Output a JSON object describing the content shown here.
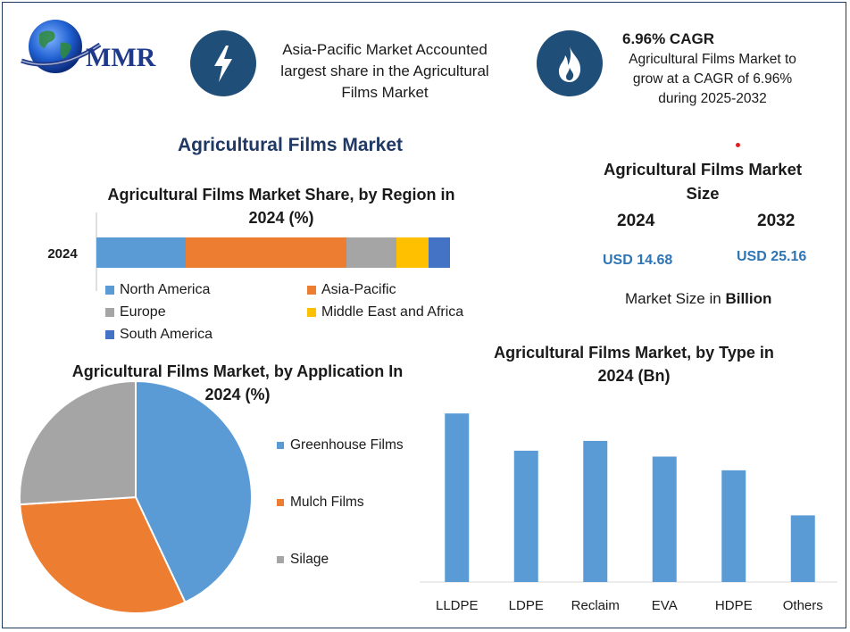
{
  "brand": {
    "logo_text": "MMR"
  },
  "header": {
    "highlight_text_lines": [
      "Asia-Pacific Market Accounted",
      "largest share in the Agricultural",
      "Films Market"
    ],
    "cagr_title": "6.96% CAGR",
    "cagr_text_lines": [
      "Agricultural Films Market to",
      "grow at a CAGR of 6.96%",
      "during 2025-2032"
    ],
    "highlight_icon": "lightning-bolt-icon",
    "cagr_icon": "flame-icon"
  },
  "main_title": "Agricultural Films Market",
  "market_size": {
    "title_lines": [
      "Agricultural Films Market",
      "Size"
    ],
    "years": [
      "2024",
      "2032"
    ],
    "values": [
      "USD 14.68",
      "USD 25.16"
    ],
    "unit_prefix": "Market Size in ",
    "unit_bold": "Billion"
  },
  "colors": {
    "accent_navy": "#1f4e79",
    "north_america": "#5b9bd5",
    "asia_pacific": "#ed7d31",
    "europe": "#a5a5a5",
    "middle_east_africa": "#ffc000",
    "south_america": "#4472c4",
    "usd_value": "#2e75b6"
  },
  "chart_data": [
    {
      "type": "bar",
      "orientation": "horizontal-stacked",
      "title_lines": [
        "Agricultural Films Market Share, by Region in",
        "2024 (%)"
      ],
      "categories": [
        "2024"
      ],
      "series": [
        {
          "name": "North America",
          "values": [
            25
          ]
        },
        {
          "name": "Asia-Pacific",
          "values": [
            45
          ]
        },
        {
          "name": "Europe",
          "values": [
            14
          ]
        },
        {
          "name": "Middle East and Africa",
          "values": [
            9
          ]
        },
        {
          "name": "South America",
          "values": [
            6
          ]
        }
      ],
      "xlim": [
        0,
        100
      ],
      "legend": "bottom"
    },
    {
      "type": "pie",
      "title_lines": [
        "Agricultural Films Market, by Application In",
        "2024 (%)"
      ],
      "categories": [
        "Greenhouse Films",
        "Mulch Films",
        "Silage"
      ],
      "values": [
        43,
        31,
        26
      ],
      "legend": "right"
    },
    {
      "type": "bar",
      "title_lines": [
        "Agricultural Films Market, by Type in",
        "2024 (Bn)"
      ],
      "categories": [
        "LLDPE",
        "LDPE",
        "Reclaim",
        "EVA",
        "HDPE",
        "Others"
      ],
      "values": [
        4.3,
        3.35,
        3.6,
        3.2,
        2.85,
        1.7
      ],
      "ylim": [
        0,
        4.6
      ],
      "grid": false,
      "legend": "none"
    }
  ]
}
